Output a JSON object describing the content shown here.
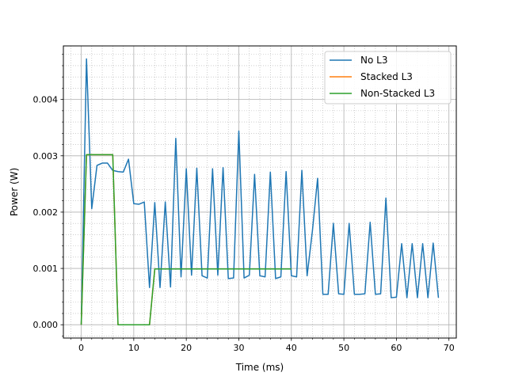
{
  "chart_data": {
    "type": "line",
    "title": "",
    "xlabel": "Time (ms)",
    "ylabel": "Power (W)",
    "xlim": [
      -3.4,
      71.4
    ],
    "ylim": [
      -0.000236,
      0.004951
    ],
    "xticks": [
      0,
      10,
      20,
      30,
      40,
      50,
      60,
      70
    ],
    "yticks": [
      0.0,
      0.001,
      0.002,
      0.003,
      0.004
    ],
    "xtick_labels": [
      "0",
      "10",
      "20",
      "30",
      "40",
      "50",
      "60",
      "70"
    ],
    "ytick_labels": [
      "0.000",
      "0.001",
      "0.002",
      "0.003",
      "0.004"
    ],
    "grid": "major and minor",
    "legend_position": "upper right",
    "series": [
      {
        "name": "No L3",
        "color": "#1f77b4",
        "x": [
          0,
          1,
          2,
          3,
          4,
          5,
          6,
          7,
          8,
          9,
          10,
          11,
          12,
          13,
          14,
          15,
          16,
          17,
          18,
          19,
          20,
          21,
          22,
          23,
          24,
          25,
          26,
          27,
          28,
          29,
          30,
          31,
          32,
          33,
          34,
          35,
          36,
          37,
          38,
          39,
          40,
          41,
          42,
          43,
          44,
          45,
          46,
          47,
          48,
          49,
          50,
          51,
          52,
          53,
          54,
          55,
          56,
          57,
          58,
          59,
          60,
          61,
          62,
          63,
          64,
          65,
          66,
          67,
          68
        ],
        "y": [
          0.0,
          0.00472,
          0.00206,
          0.00283,
          0.00287,
          0.00287,
          0.00274,
          0.00272,
          0.00271,
          0.00294,
          0.00215,
          0.00214,
          0.00218,
          0.00066,
          0.00217,
          0.00066,
          0.00218,
          0.00067,
          0.00331,
          0.00085,
          0.00277,
          0.00088,
          0.00278,
          0.00087,
          0.00083,
          0.00277,
          0.00088,
          0.00279,
          0.00082,
          0.00083,
          0.00344,
          0.00083,
          0.00088,
          0.00267,
          0.00087,
          0.00085,
          0.00271,
          0.00082,
          0.00085,
          0.00272,
          0.00087,
          0.00085,
          0.00274,
          0.00087,
          0.00166,
          0.0026,
          0.00054,
          0.00054,
          0.0018,
          0.00055,
          0.00054,
          0.0018,
          0.00054,
          0.00054,
          0.00055,
          0.00182,
          0.00054,
          0.00055,
          0.00225,
          0.00048,
          0.00049,
          0.00144,
          0.00048,
          0.00144,
          0.00048,
          0.00144,
          0.00048,
          0.00145,
          0.00048
        ]
      },
      {
        "name": "Stacked L3",
        "color": "#ff7f0e",
        "x": [
          0,
          1,
          2,
          3,
          4,
          5,
          6,
          7,
          8,
          9,
          10,
          11,
          12,
          13,
          14,
          15,
          16,
          17,
          18,
          19,
          20,
          21,
          22,
          23,
          24,
          25,
          26,
          27,
          28,
          29,
          30,
          31,
          32,
          33,
          34,
          35,
          36,
          37,
          38,
          39,
          40
        ],
        "y": [
          0.0,
          0.00302,
          0.00302,
          0.00302,
          0.00302,
          0.00302,
          0.00302,
          0.0,
          0.0,
          0.0,
          0.0,
          0.0,
          0.0,
          0.0,
          0.00099,
          0.00099,
          0.00099,
          0.00099,
          0.00099,
          0.00099,
          0.00099,
          0.00099,
          0.00099,
          0.00099,
          0.00099,
          0.00099,
          0.00099,
          0.00099,
          0.00099,
          0.00099,
          0.00099,
          0.00099,
          0.00099,
          0.00099,
          0.00099,
          0.00099,
          0.00099,
          0.00099,
          0.00099,
          0.00099,
          0.00099
        ]
      },
      {
        "name": "Non-Stacked L3",
        "color": "#2ca02c",
        "x": [
          0,
          1,
          2,
          3,
          4,
          5,
          6,
          7,
          8,
          9,
          10,
          11,
          12,
          13,
          14,
          15,
          16,
          17,
          18,
          19,
          20,
          21,
          22,
          23,
          24,
          25,
          26,
          27,
          28,
          29,
          30,
          31,
          32,
          33,
          34,
          35,
          36,
          37,
          38,
          39,
          40
        ],
        "y": [
          0.0,
          0.00302,
          0.00302,
          0.00302,
          0.00302,
          0.00302,
          0.00302,
          0.0,
          0.0,
          0.0,
          0.0,
          0.0,
          0.0,
          0.0,
          0.00099,
          0.00099,
          0.00099,
          0.00099,
          0.00099,
          0.00099,
          0.00099,
          0.00099,
          0.00099,
          0.00099,
          0.00099,
          0.00099,
          0.00099,
          0.00099,
          0.00099,
          0.00099,
          0.00099,
          0.00099,
          0.00099,
          0.00099,
          0.00099,
          0.00099,
          0.00099,
          0.00099,
          0.00099,
          0.00099,
          0.00099
        ]
      }
    ]
  }
}
